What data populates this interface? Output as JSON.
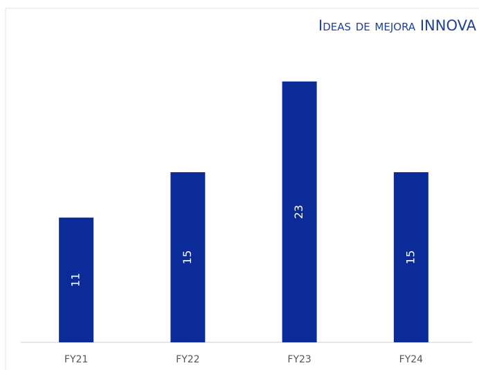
{
  "chart_data": {
    "type": "bar",
    "title": "Ideas de mejora INNOVA",
    "categories": [
      "FY21",
      "FY22",
      "FY23",
      "FY24"
    ],
    "values": [
      11,
      15,
      23,
      15
    ],
    "color": "#0b2c98",
    "ylim": [
      0,
      25
    ]
  }
}
